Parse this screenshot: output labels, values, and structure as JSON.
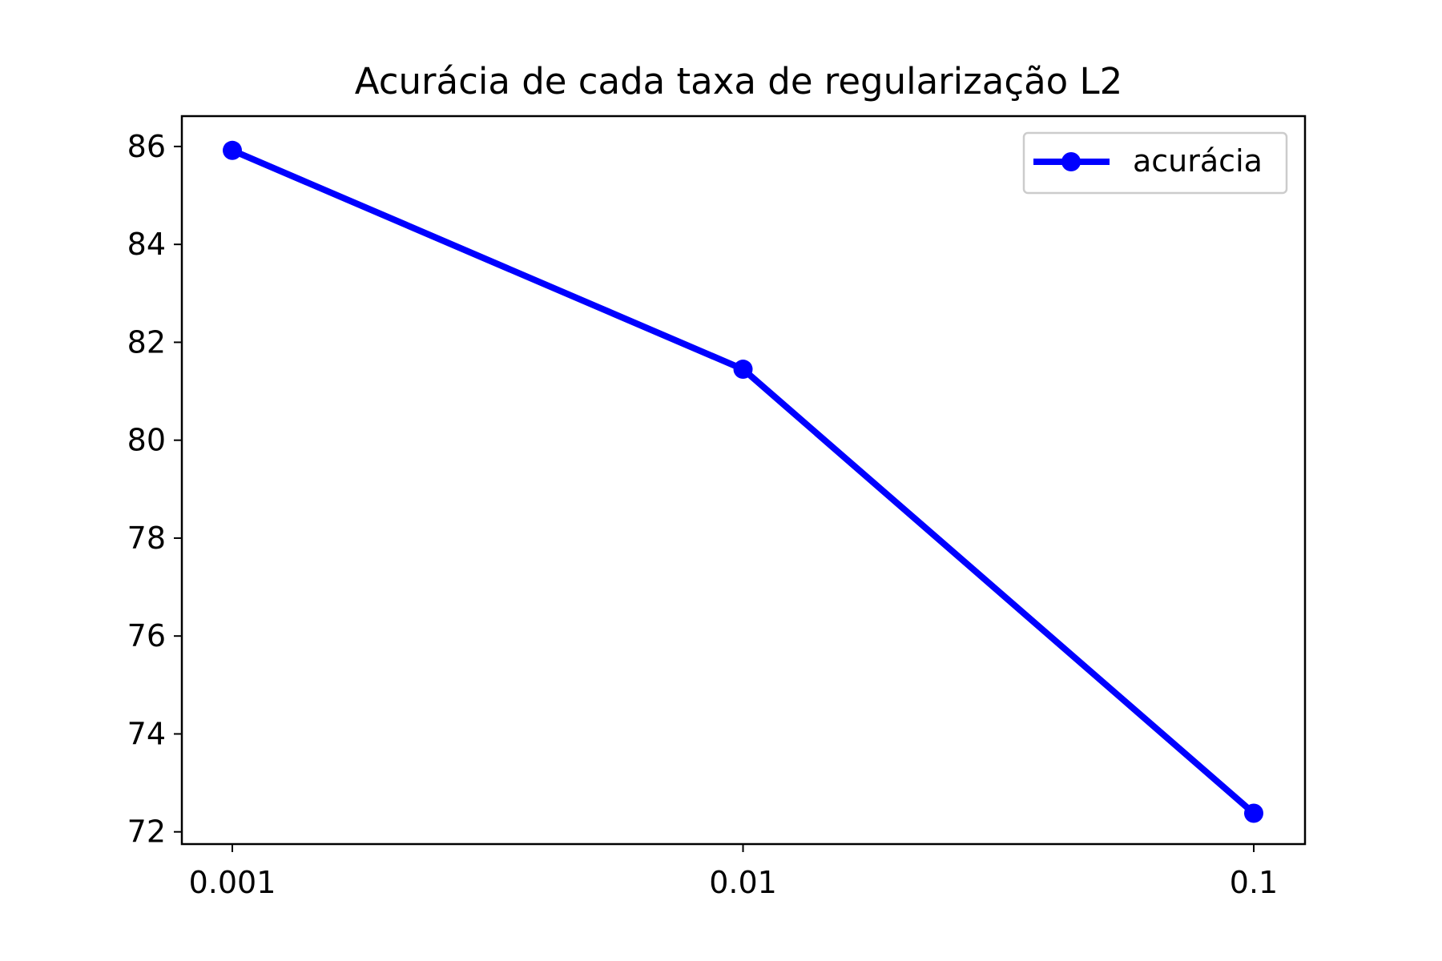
{
  "chart_data": {
    "type": "line",
    "title": "Acurácia de cada taxa de regularização L2",
    "xlabel": "",
    "ylabel": "",
    "categories": [
      "0.001",
      "0.01",
      "0.1"
    ],
    "series": [
      {
        "name": "acurácia",
        "values": [
          85.92,
          81.45,
          72.38
        ],
        "color": "#0000ff",
        "marker": "circle"
      }
    ],
    "ylim": [
      71.75,
      86.62
    ],
    "y_ticks": [
      72,
      74,
      76,
      78,
      80,
      82,
      84,
      86
    ],
    "y_tick_labels": [
      "72",
      "74",
      "76",
      "78",
      "80",
      "82",
      "84",
      "86"
    ],
    "grid": false,
    "legend_position": "top-right"
  }
}
